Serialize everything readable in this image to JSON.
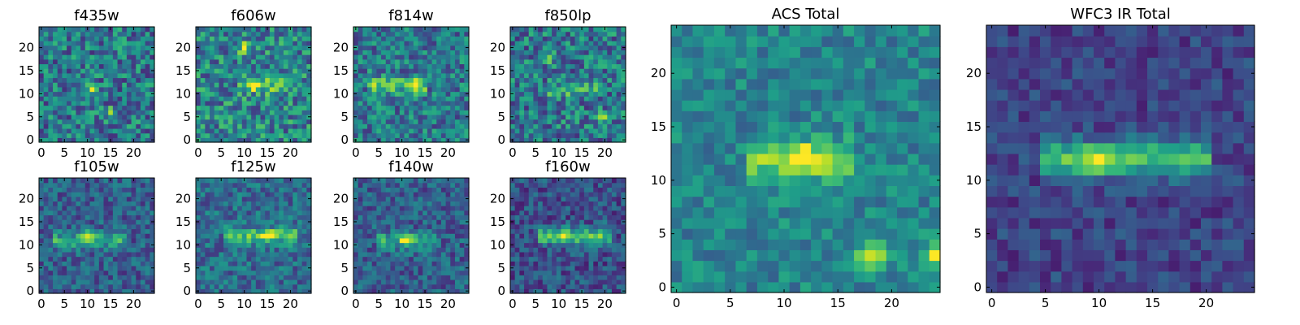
{
  "figure": {
    "colormap": "viridis",
    "background": "#ffffff",
    "axis_color": "#000000"
  },
  "chart_data": [
    {
      "type": "heatmap",
      "title": "f435w",
      "grid_size": [
        24,
        24
      ],
      "xticks": [
        "0",
        "5",
        "10",
        "15",
        "20"
      ],
      "yticks": [
        "0",
        "5",
        "10",
        "15",
        "20"
      ],
      "xlim": [
        0,
        24
      ],
      "ylim": [
        0,
        24
      ],
      "grid": false,
      "notable_peaks": [
        {
          "x": 11,
          "y": 11,
          "level": "high"
        },
        {
          "x": 15,
          "y": 6,
          "level": "high"
        }
      ],
      "ridge": null,
      "baseline_level": 0.4,
      "noise_amplitude": 0.45
    },
    {
      "type": "heatmap",
      "title": "f606w",
      "grid_size": [
        24,
        24
      ],
      "xticks": [
        "0",
        "5",
        "10",
        "15",
        "20"
      ],
      "yticks": [
        "0",
        "5",
        "10",
        "15",
        "20"
      ],
      "xlim": [
        0,
        24
      ],
      "ylim": [
        0,
        24
      ],
      "grid": false,
      "notable_peaks": [
        {
          "x": 12,
          "y": 12,
          "level": "high"
        },
        {
          "x": 10,
          "y": 20,
          "level": "high"
        }
      ],
      "ridge": {
        "y": 12,
        "x_range": [
          9,
          19
        ],
        "strength": 0.3
      },
      "baseline_level": 0.45,
      "noise_amplitude": 0.45
    },
    {
      "type": "heatmap",
      "title": "f814w",
      "grid_size": [
        24,
        24
      ],
      "xticks": [
        "0",
        "5",
        "10",
        "15",
        "20"
      ],
      "yticks": [
        "0",
        "5",
        "10",
        "15",
        "20"
      ],
      "xlim": [
        0,
        24
      ],
      "ylim": [
        0,
        24
      ],
      "grid": false,
      "notable_peaks": [
        {
          "x": 13,
          "y": 12,
          "level": "high"
        }
      ],
      "ridge": {
        "y": 12,
        "x_range": [
          3,
          15
        ],
        "strength": 0.3
      },
      "baseline_level": 0.4,
      "noise_amplitude": 0.4
    },
    {
      "type": "heatmap",
      "title": "f850lp",
      "grid_size": [
        24,
        24
      ],
      "xticks": [
        "0",
        "5",
        "10",
        "15",
        "20"
      ],
      "yticks": [
        "0",
        "5",
        "10",
        "15",
        "20"
      ],
      "xlim": [
        0,
        24
      ],
      "ylim": [
        0,
        24
      ],
      "grid": false,
      "notable_peaks": [
        {
          "x": 8,
          "y": 18,
          "level": "high"
        },
        {
          "x": 20,
          "y": 5,
          "level": "high"
        }
      ],
      "ridge": {
        "y": 11,
        "x_range": [
          8,
          18
        ],
        "strength": 0.2
      },
      "baseline_level": 0.4,
      "noise_amplitude": 0.45
    },
    {
      "type": "heatmap",
      "title": "f105w",
      "grid_size": [
        24,
        24
      ],
      "xticks": [
        "0",
        "5",
        "10",
        "15",
        "20"
      ],
      "yticks": [
        "0",
        "5",
        "10",
        "15",
        "20"
      ],
      "xlim": [
        0,
        24
      ],
      "ylim": [
        0,
        24
      ],
      "grid": false,
      "notable_peaks": [
        {
          "x": 10,
          "y": 12,
          "level": "high"
        }
      ],
      "ridge": {
        "y": 11,
        "x_range": [
          3,
          18
        ],
        "strength": 0.3
      },
      "baseline_level": 0.3,
      "noise_amplitude": 0.3
    },
    {
      "type": "heatmap",
      "title": "f125w",
      "grid_size": [
        24,
        24
      ],
      "xticks": [
        "0",
        "5",
        "10",
        "15",
        "20"
      ],
      "yticks": [
        "0",
        "5",
        "10",
        "15",
        "20"
      ],
      "xlim": [
        0,
        24
      ],
      "ylim": [
        0,
        24
      ],
      "grid": false,
      "notable_peaks": [
        {
          "x": 15,
          "y": 12,
          "level": "high"
        }
      ],
      "ridge": {
        "y": 12,
        "x_range": [
          6,
          21
        ],
        "strength": 0.35
      },
      "baseline_level": 0.35,
      "noise_amplitude": 0.3
    },
    {
      "type": "heatmap",
      "title": "f140w",
      "grid_size": [
        24,
        24
      ],
      "xticks": [
        "0",
        "5",
        "10",
        "15",
        "20"
      ],
      "yticks": [
        "0",
        "5",
        "10",
        "15",
        "20"
      ],
      "xlim": [
        0,
        24
      ],
      "ylim": [
        0,
        24
      ],
      "grid": false,
      "notable_peaks": [
        {
          "x": 11,
          "y": 11,
          "level": "high"
        }
      ],
      "ridge": {
        "y": 11,
        "x_range": [
          5,
          17
        ],
        "strength": 0.3
      },
      "baseline_level": 0.3,
      "noise_amplitude": 0.3
    },
    {
      "type": "heatmap",
      "title": "f160w",
      "grid_size": [
        24,
        24
      ],
      "xticks": [
        "0",
        "5",
        "10",
        "15",
        "20"
      ],
      "yticks": [
        "0",
        "5",
        "10",
        "15",
        "20"
      ],
      "xlim": [
        0,
        24
      ],
      "ylim": [
        0,
        24
      ],
      "grid": false,
      "notable_peaks": [
        {
          "x": 11,
          "y": 12,
          "level": "high"
        }
      ],
      "ridge": {
        "y": 12,
        "x_range": [
          6,
          21
        ],
        "strength": 0.45
      },
      "baseline_level": 0.25,
      "noise_amplitude": 0.3
    },
    {
      "type": "heatmap",
      "title": "ACS Total",
      "grid_size": [
        24,
        24
      ],
      "xticks": [
        "0",
        "5",
        "10",
        "15",
        "20"
      ],
      "yticks": [
        "0",
        "5",
        "10",
        "15",
        "20"
      ],
      "xlim": [
        0,
        24
      ],
      "ylim": [
        0,
        24
      ],
      "grid": false,
      "notable_peaks": [
        {
          "x": 12,
          "y": 12,
          "level": "high"
        },
        {
          "x": 18,
          "y": 3,
          "level": "high"
        },
        {
          "x": 24,
          "y": 3,
          "level": "high"
        }
      ],
      "ridge": {
        "y": 12,
        "x_range": [
          7,
          16
        ],
        "strength": 0.35
      },
      "baseline_level": 0.45,
      "noise_amplitude": 0.25
    },
    {
      "type": "heatmap",
      "title": "WFC3 IR Total",
      "grid_size": [
        24,
        24
      ],
      "xticks": [
        "0",
        "5",
        "10",
        "15",
        "20"
      ],
      "yticks": [
        "0",
        "5",
        "10",
        "15",
        "20"
      ],
      "xlim": [
        0,
        24
      ],
      "ylim": [
        0,
        24
      ],
      "grid": false,
      "notable_peaks": [
        {
          "x": 10,
          "y": 12,
          "level": "high"
        }
      ],
      "ridge": {
        "y": 12,
        "x_range": [
          5,
          20
        ],
        "strength": 0.5
      },
      "baseline_level": 0.2,
      "noise_amplitude": 0.2
    }
  ]
}
